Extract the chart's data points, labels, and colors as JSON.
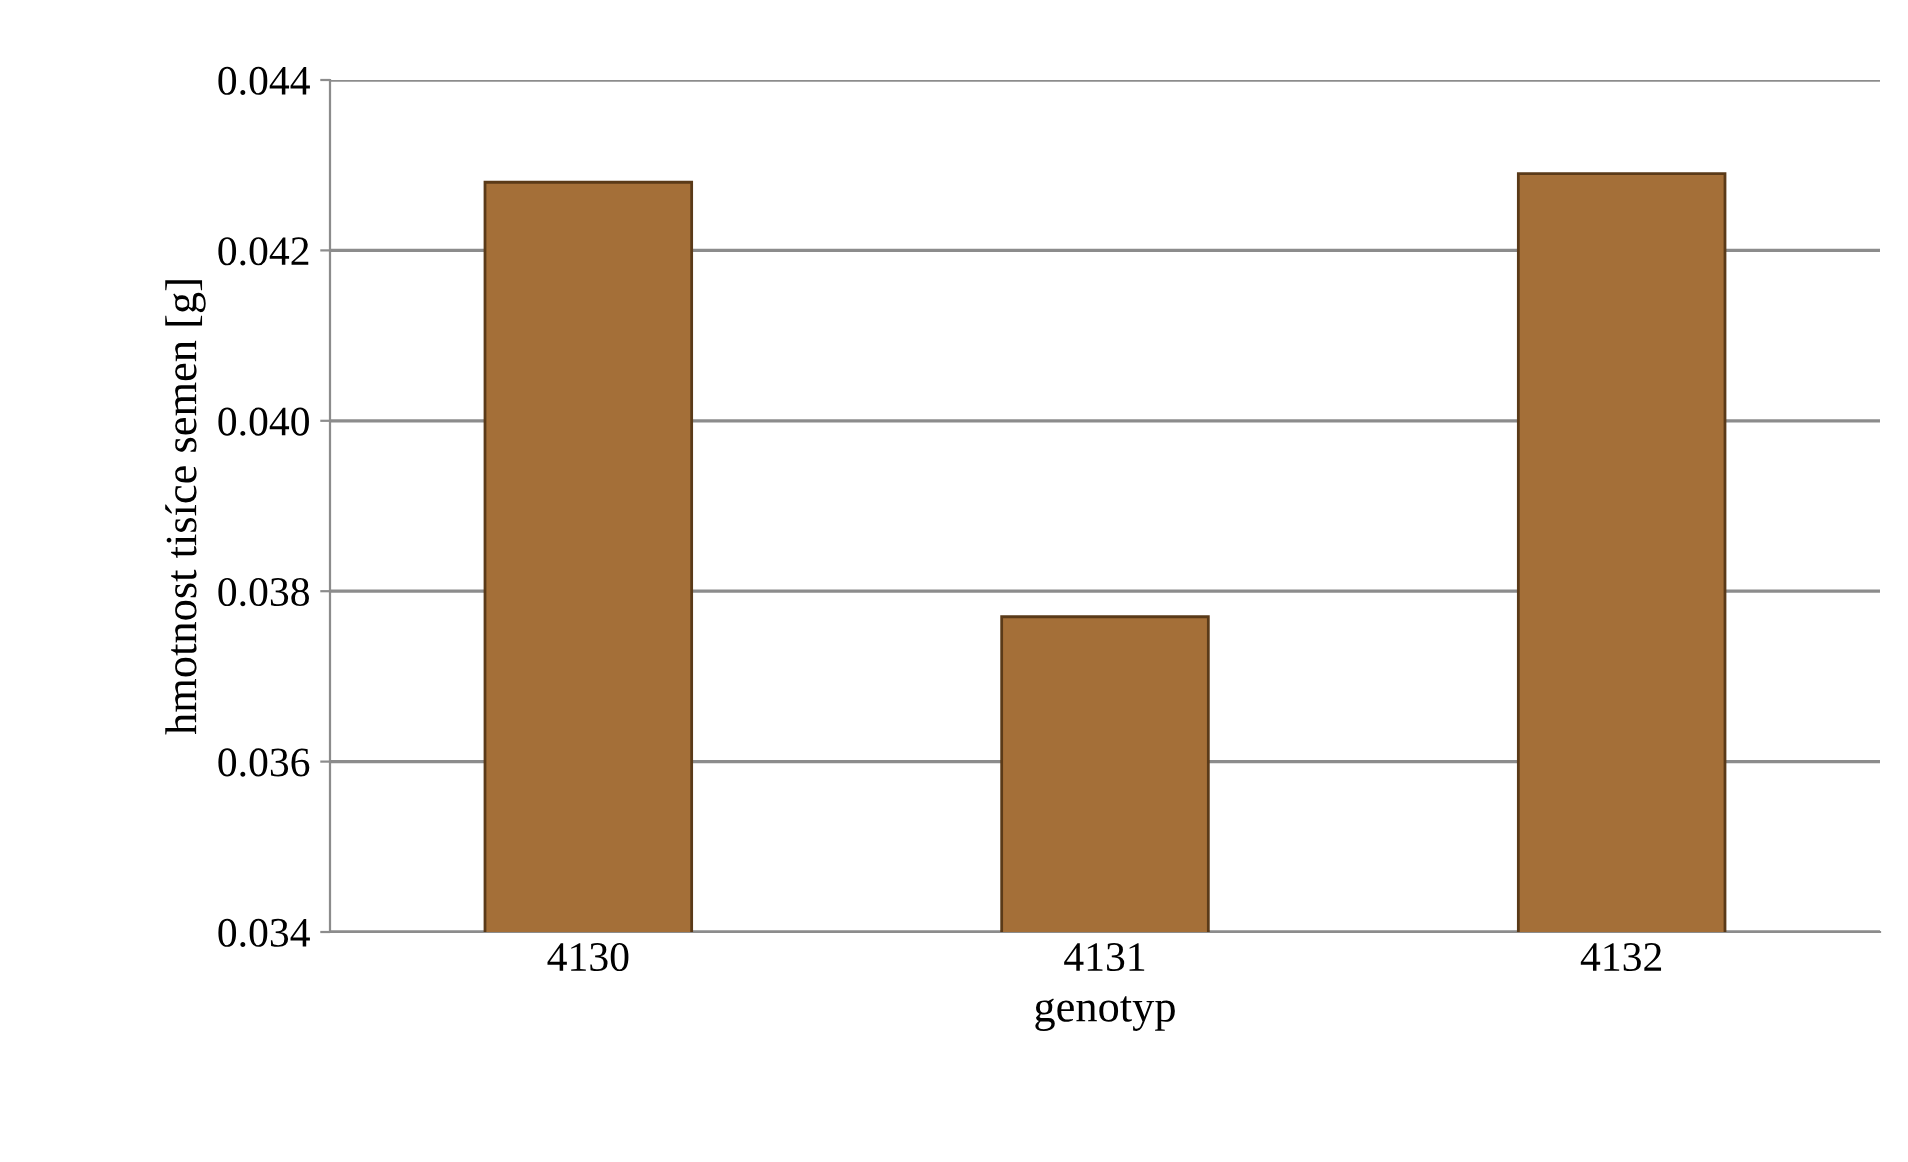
{
  "chart_data": {
    "type": "bar",
    "xlabel": "genotyp",
    "ylabel": "hmotnost tisíce semen [g]",
    "categories": [
      "4130",
      "4131",
      "4132"
    ],
    "values": [
      0.0428,
      0.0377,
      0.0429
    ],
    "color": "#a46f38",
    "ylim": [
      0.034,
      0.044
    ],
    "yticks": [
      {
        "value": 0.034,
        "label": "0.034"
      },
      {
        "value": 0.036,
        "label": "0.036"
      },
      {
        "value": 0.038,
        "label": "0.038"
      },
      {
        "value": 0.04,
        "label": "0.040"
      },
      {
        "value": 0.042,
        "label": "0.042"
      },
      {
        "value": 0.044,
        "label": "0.044"
      }
    ],
    "grid": "y"
  }
}
